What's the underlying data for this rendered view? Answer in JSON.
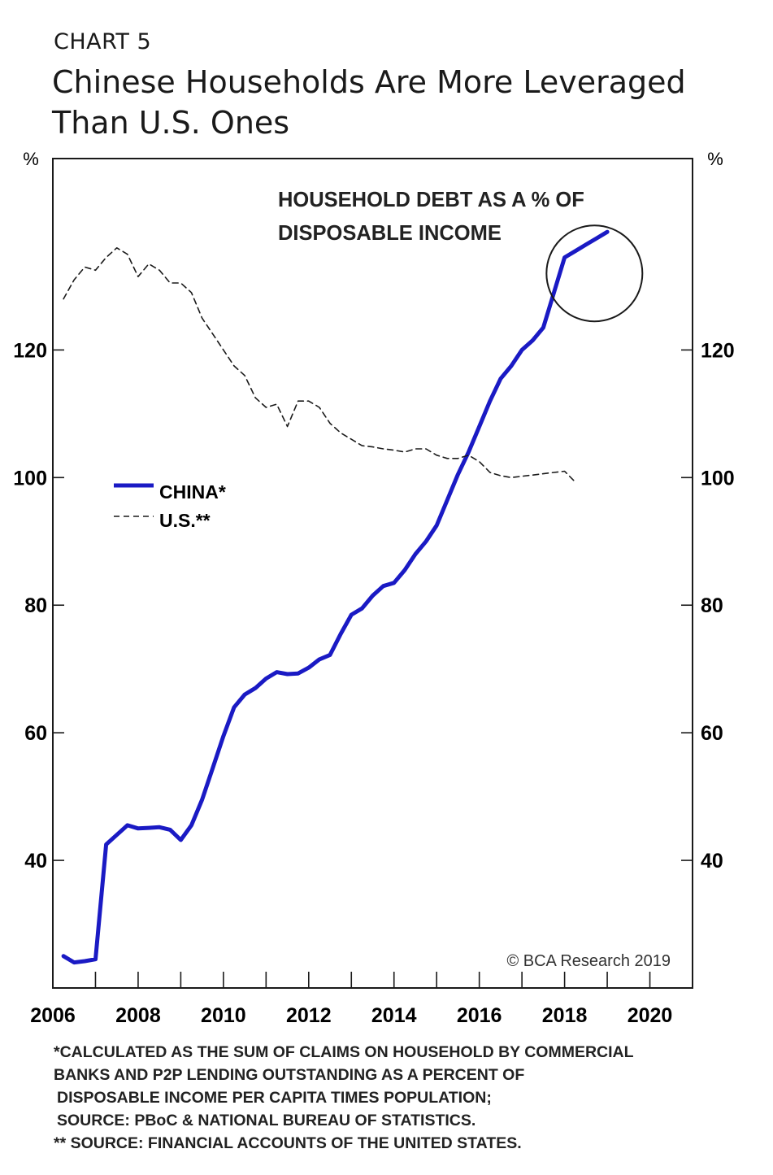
{
  "header": {
    "label": "CHART 5",
    "title_line1": "Chinese Households Are More Leveraged",
    "title_line2": "Than U.S. Ones"
  },
  "chart_data": {
    "type": "line",
    "annotation_line1": "HOUSEHOLD DEBT AS A % OF",
    "annotation_line2": "DISPOSABLE INCOME",
    "y_unit_left": "%",
    "y_unit_right": "%",
    "ylim": [
      20,
      150
    ],
    "yticks": [
      40,
      60,
      80,
      100,
      120
    ],
    "ytick_labels": [
      "40",
      "60",
      "80",
      "100",
      "120"
    ],
    "xlim": [
      2006,
      2021
    ],
    "xticks": [
      2006,
      2008,
      2010,
      2012,
      2014,
      2016,
      2018,
      2020
    ],
    "xtick_labels": [
      "2006",
      "2008",
      "2010",
      "2012",
      "2014",
      "2016",
      "2018",
      "2020"
    ],
    "xminor": [
      2007,
      2009,
      2011,
      2013,
      2015,
      2017,
      2019
    ],
    "legend_position": "left",
    "copyright": "© BCA Research 2019",
    "highlight_circle": {
      "x": 2018.7,
      "y": 132
    },
    "colors": {
      "china": "#1a1ac4",
      "us": "#1a1a1a"
    },
    "series": [
      {
        "name": "CHINA*",
        "style": "solid",
        "x": [
          2006.25,
          2006.5,
          2006.75,
          2007.0,
          2007.25,
          2007.5,
          2007.75,
          2008.0,
          2008.25,
          2008.5,
          2008.75,
          2009.0,
          2009.25,
          2009.5,
          2009.75,
          2010.0,
          2010.25,
          2010.5,
          2010.75,
          2011.0,
          2011.25,
          2011.5,
          2011.75,
          2012.0,
          2012.25,
          2012.5,
          2012.75,
          2013.0,
          2013.25,
          2013.5,
          2013.75,
          2014.0,
          2014.25,
          2014.5,
          2014.75,
          2015.0,
          2015.25,
          2015.5,
          2015.75,
          2016.0,
          2016.25,
          2016.5,
          2016.75,
          2017.0,
          2017.25,
          2017.5,
          2017.75,
          2018.0,
          2018.25,
          2018.5,
          2018.75,
          2019.0
        ],
        "values": [
          25,
          24,
          24.2,
          24.5,
          42.5,
          44,
          45.5,
          45,
          45.1,
          45.2,
          44.8,
          43.2,
          45.5,
          49.5,
          54.5,
          59.5,
          64,
          66,
          67,
          68.5,
          69.5,
          69.2,
          69.3,
          70.2,
          71.5,
          72.2,
          75.5,
          78.5,
          79.5,
          81.5,
          83,
          83.5,
          85.5,
          88,
          90,
          92.5,
          96.5,
          100.5,
          104,
          108,
          112,
          115.5,
          117.5,
          120,
          121.5,
          123.5,
          129,
          134.5,
          135.5,
          136.5,
          137.5,
          138.5
        ]
      },
      {
        "name": "U.S.**",
        "style": "dashed",
        "x": [
          2006.25,
          2006.5,
          2006.75,
          2007.0,
          2007.25,
          2007.5,
          2007.75,
          2008.0,
          2008.25,
          2008.5,
          2008.75,
          2009.0,
          2009.25,
          2009.5,
          2009.75,
          2010.0,
          2010.25,
          2010.5,
          2010.75,
          2011.0,
          2011.25,
          2011.5,
          2011.75,
          2012.0,
          2012.25,
          2012.5,
          2012.75,
          2013.0,
          2013.25,
          2013.5,
          2013.75,
          2014.0,
          2014.25,
          2014.5,
          2014.75,
          2015.0,
          2015.25,
          2015.5,
          2015.75,
          2016.0,
          2016.25,
          2016.5,
          2016.75,
          2017.0,
          2017.25,
          2017.5,
          2017.75,
          2018.0,
          2018.25
        ],
        "values": [
          128,
          131,
          133,
          132.5,
          134.5,
          136,
          135,
          131.5,
          133.5,
          132.5,
          130.5,
          130.5,
          129,
          125,
          122.5,
          120,
          117.5,
          116,
          112.5,
          111,
          111.5,
          108,
          112,
          112,
          111,
          108.5,
          107,
          106,
          105,
          104.8,
          104.5,
          104.3,
          104,
          104.5,
          104.5,
          103.5,
          103,
          103,
          103.5,
          102.5,
          100.8,
          100.3,
          100,
          100.2,
          100.4,
          100.6,
          100.8,
          101,
          99.3
        ]
      }
    ]
  }
}
